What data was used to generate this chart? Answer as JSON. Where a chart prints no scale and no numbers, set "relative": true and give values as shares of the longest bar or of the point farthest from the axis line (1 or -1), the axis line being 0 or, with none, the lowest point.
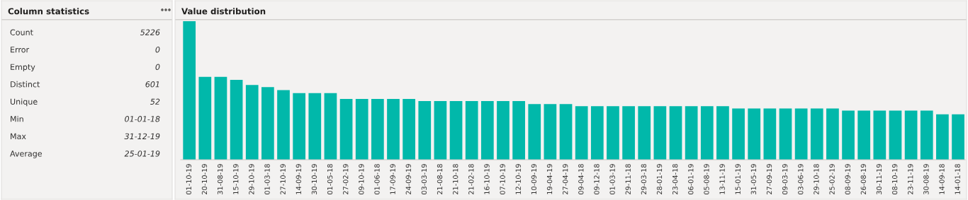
{
  "chart_data": [
    {
      "type": "other",
      "title": "Column statistics",
      "annotations": [
        "Count",
        "5226",
        "Error",
        "0",
        "Empty",
        "0",
        "Distinct",
        "601",
        "Unique",
        "52",
        "Min",
        "01-01-18",
        "Max",
        "31-12-19",
        "Average",
        "25-01-19"
      ]
    },
    {
      "type": "bar",
      "title": "Value distribution",
      "relative": true,
      "color": "#01b8aa",
      "categories": [
        "01-10-19",
        "20-10-19",
        "31-08-19",
        "15-10-19",
        "29-10-19",
        "01-03-18",
        "27-10-19",
        "14-09-19",
        "30-10-19",
        "01-05-18",
        "27-02-19",
        "09-10-19",
        "01-06-18",
        "17-09-19",
        "24-09-19",
        "03-03-19",
        "21-08-18",
        "21-10-18",
        "21-02-18",
        "16-10-19",
        "07-10-19",
        "12-10-19",
        "10-09-19",
        "19-04-19",
        "27-04-19",
        "09-04-18",
        "09-12-18",
        "01-03-19",
        "29-11-18",
        "29-03-18",
        "28-01-19",
        "23-04-18",
        "06-01-19",
        "05-08-19",
        "13-11-19",
        "15-01-19",
        "31-05-19",
        "27-09-19",
        "09-03-19",
        "03-06-19",
        "29-10-18",
        "25-02-19",
        "08-09-19",
        "26-08-19",
        "30-11-19",
        "08-10-19",
        "23-11-19",
        "30-08-19",
        "14-09-18",
        "14-01-18"
      ],
      "values": [
        1,
        0.598,
        0.598,
        0.577,
        0.54,
        0.524,
        0.503,
        0.481,
        0.481,
        0.481,
        0.439,
        0.439,
        0.439,
        0.439,
        0.439,
        0.423,
        0.423,
        0.423,
        0.423,
        0.423,
        0.423,
        0.423,
        0.402,
        0.402,
        0.402,
        0.386,
        0.386,
        0.386,
        0.386,
        0.386,
        0.386,
        0.386,
        0.386,
        0.386,
        0.386,
        0.37,
        0.37,
        0.37,
        0.37,
        0.37,
        0.37,
        0.37,
        0.354,
        0.354,
        0.354,
        0.354,
        0.354,
        0.354,
        0.328,
        0.328
      ]
    }
  ]
}
